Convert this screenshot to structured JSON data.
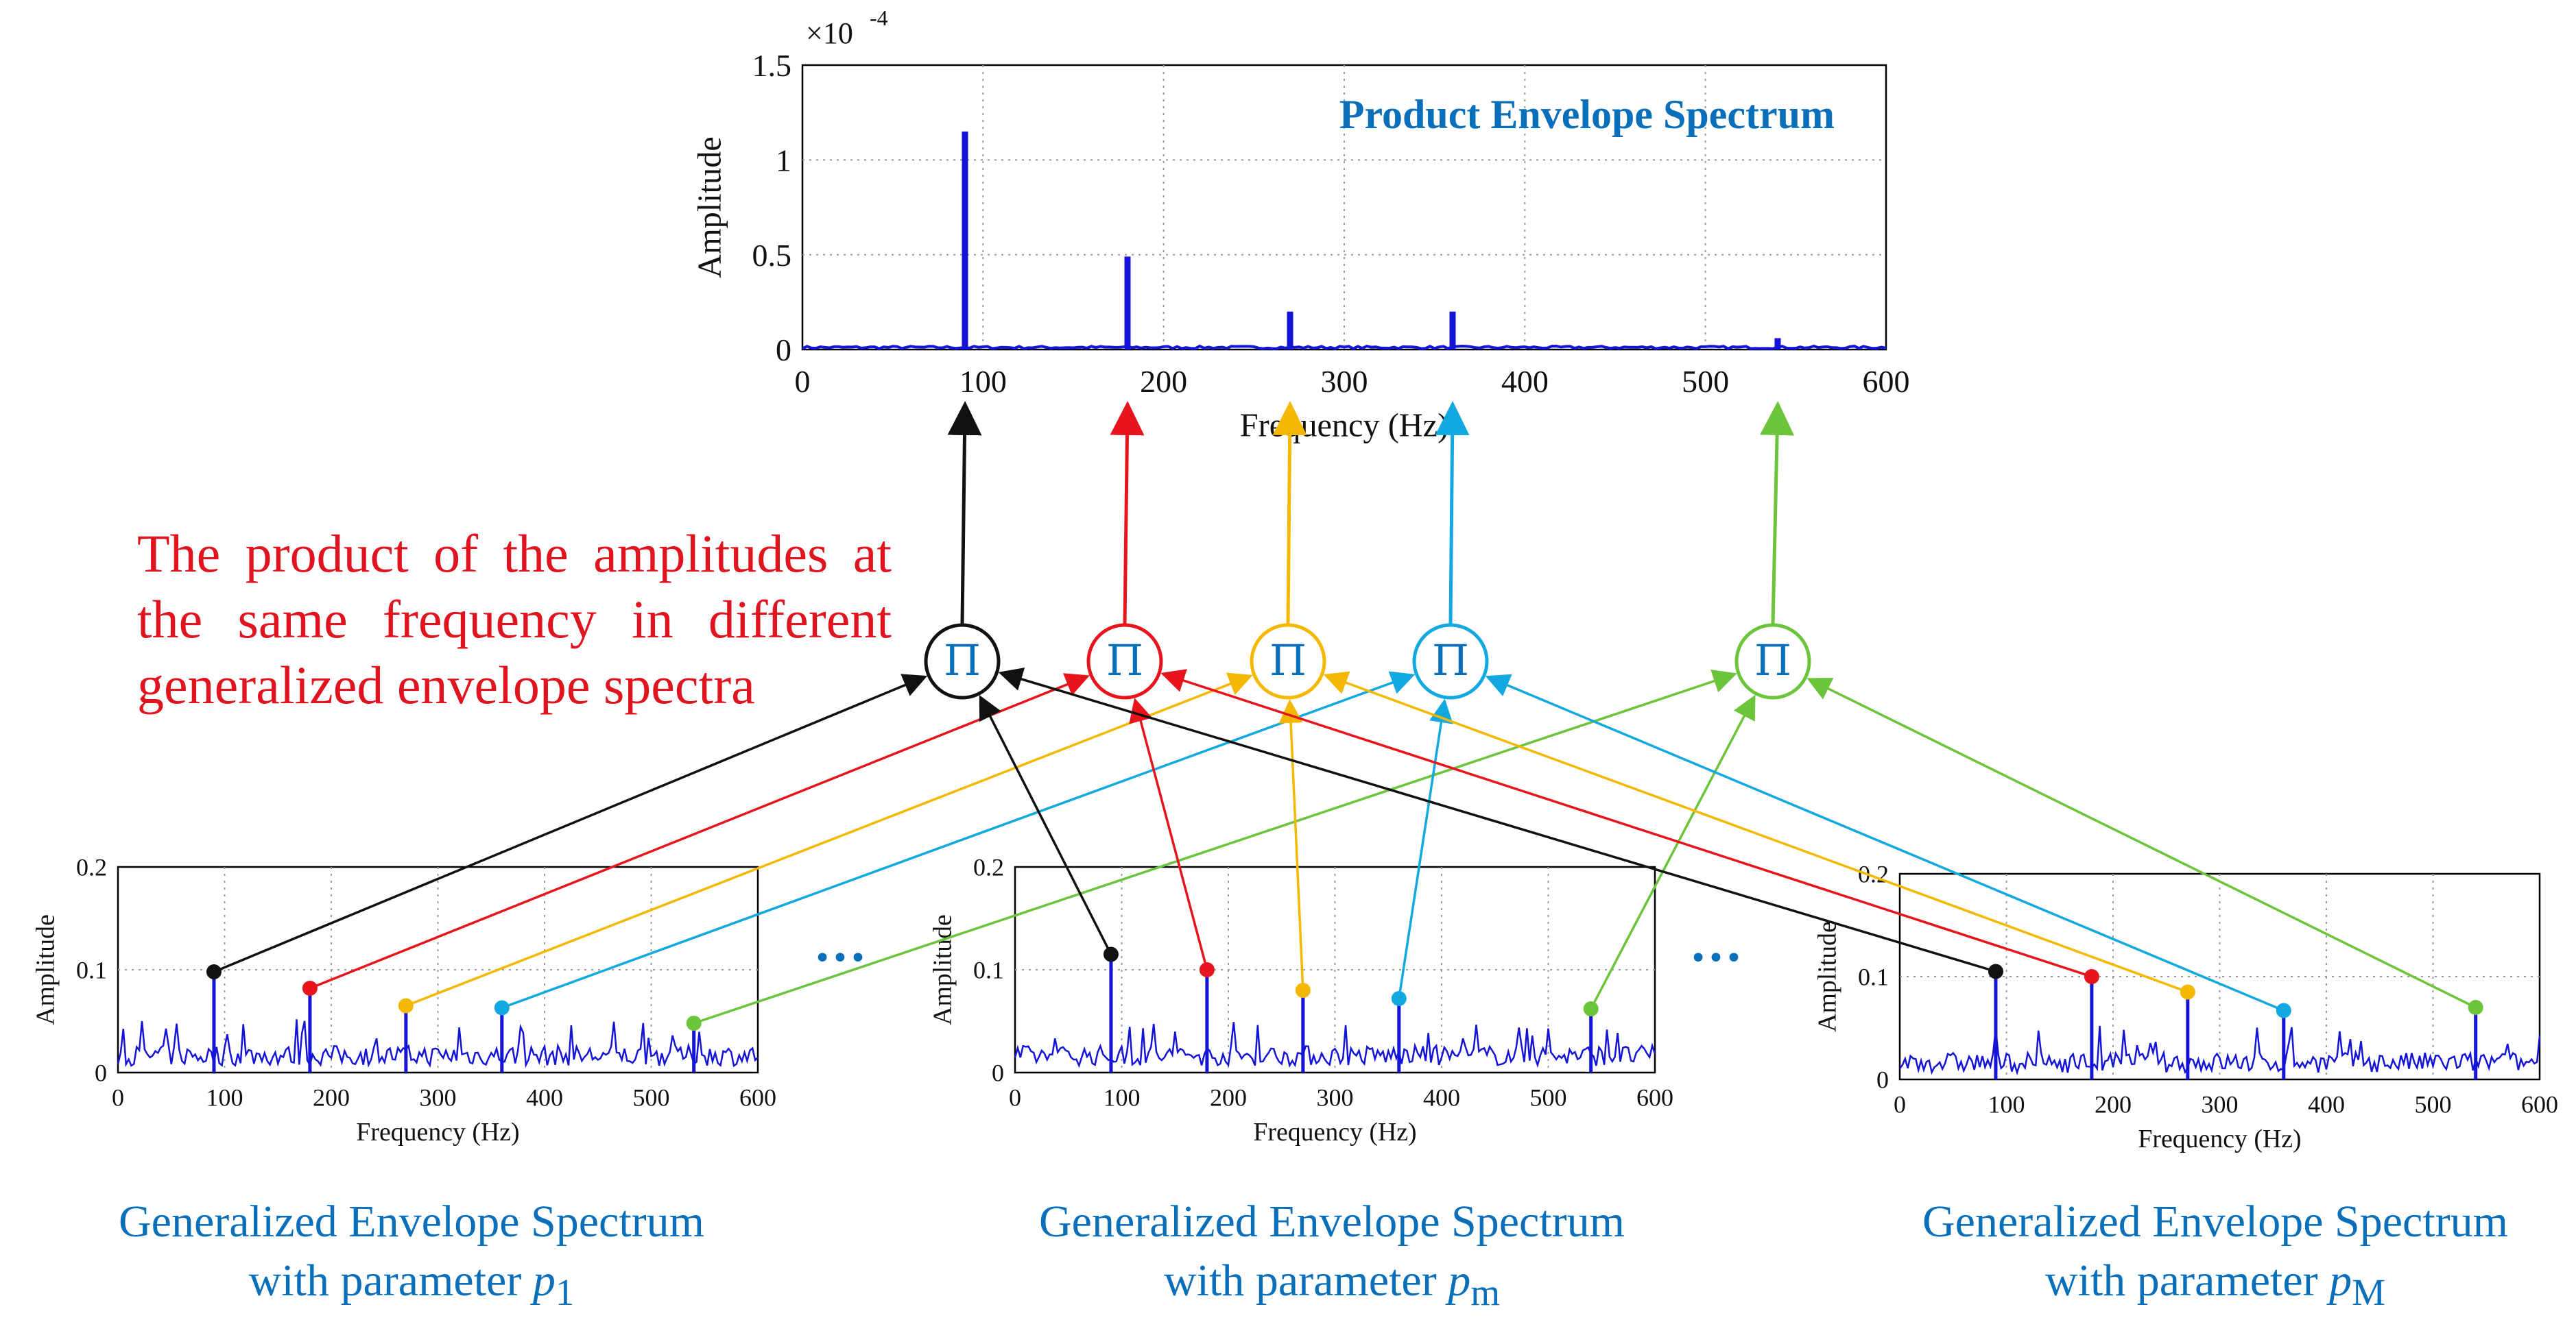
{
  "annotation": "The product of the amplitudes at the same frequency in different generalized envelope spectra",
  "ellipsis": "•••",
  "product_symbol": "Π",
  "colors": {
    "black": "#111111",
    "red": "#e8141c",
    "yellow": "#f5b800",
    "cyan": "#12a8e0",
    "green": "#6cc43a",
    "signal": "#1414d8",
    "title": "#0a6fba"
  },
  "chart_data": [
    {
      "id": "product",
      "type": "line",
      "title": "Product Envelope Spectrum",
      "xlabel": "Frequency (Hz)",
      "ylabel": "Amplitude",
      "y_exponent_label": "×10",
      "y_exponent_power": "-4",
      "xlim": [
        0,
        600
      ],
      "ylim": [
        0,
        1.5
      ],
      "xticks": [
        0,
        100,
        200,
        300,
        400,
        500,
        600
      ],
      "yticks": [
        0,
        0.5,
        1,
        1.5
      ],
      "ytick_labels": [
        "0",
        "0.5",
        "1",
        "1.5"
      ],
      "grid": true,
      "noise_level": 0.015,
      "peaks": [
        {
          "x": 90,
          "y": 1.15
        },
        {
          "x": 180,
          "y": 0.49
        },
        {
          "x": 270,
          "y": 0.2
        },
        {
          "x": 360,
          "y": 0.2
        },
        {
          "x": 540,
          "y": 0.06
        }
      ]
    },
    {
      "id": "p1",
      "type": "line",
      "xlabel": "Frequency (Hz)",
      "ylabel": "Amplitude",
      "xlim": [
        0,
        600
      ],
      "ylim": [
        0,
        0.2
      ],
      "xticks": [
        0,
        100,
        200,
        300,
        400,
        500,
        600
      ],
      "yticks": [
        0,
        0.1,
        0.2
      ],
      "ytick_labels": [
        "0",
        "0.1",
        "0.2"
      ],
      "grid": true,
      "noise_level": 0.022,
      "caption_line1": "Generalized Envelope Spectrum",
      "caption_line2": "with parameter ",
      "param": "p",
      "param_sub": "1",
      "markers": [
        {
          "x": 90,
          "y": 0.098,
          "color": "black"
        },
        {
          "x": 180,
          "y": 0.082,
          "color": "red"
        },
        {
          "x": 270,
          "y": 0.065,
          "color": "yellow"
        },
        {
          "x": 360,
          "y": 0.063,
          "color": "cyan"
        },
        {
          "x": 540,
          "y": 0.048,
          "color": "green"
        }
      ]
    },
    {
      "id": "pm",
      "type": "line",
      "xlabel": "Frequency (Hz)",
      "ylabel": "Amplitude",
      "xlim": [
        0,
        600
      ],
      "ylim": [
        0,
        0.2
      ],
      "xticks": [
        0,
        100,
        200,
        300,
        400,
        500,
        600
      ],
      "yticks": [
        0,
        0.1,
        0.2
      ],
      "ytick_labels": [
        "0",
        "0.1",
        "0.2"
      ],
      "grid": true,
      "noise_level": 0.022,
      "caption_line1": "Generalized Envelope Spectrum",
      "caption_line2": "with parameter ",
      "param": "p",
      "param_sub": "m",
      "markers": [
        {
          "x": 90,
          "y": 0.115,
          "color": "black"
        },
        {
          "x": 180,
          "y": 0.1,
          "color": "red"
        },
        {
          "x": 270,
          "y": 0.08,
          "color": "yellow"
        },
        {
          "x": 360,
          "y": 0.072,
          "color": "cyan"
        },
        {
          "x": 540,
          "y": 0.062,
          "color": "green"
        }
      ]
    },
    {
      "id": "pM",
      "type": "line",
      "xlabel": "Frequency (Hz)",
      "ylabel": "Amplitude",
      "xlim": [
        0,
        600
      ],
      "ylim": [
        0,
        0.2
      ],
      "xticks": [
        0,
        100,
        200,
        300,
        400,
        500,
        600
      ],
      "yticks": [
        0,
        0.1,
        0.2
      ],
      "ytick_labels": [
        "0",
        "0.1",
        "0.2"
      ],
      "grid": true,
      "noise_level": 0.022,
      "caption_line1": "Generalized Envelope Spectrum",
      "caption_line2": "with parameter ",
      "param": "p",
      "param_sub": "M",
      "markers": [
        {
          "x": 90,
          "y": 0.105,
          "color": "black"
        },
        {
          "x": 180,
          "y": 0.1,
          "color": "red"
        },
        {
          "x": 270,
          "y": 0.085,
          "color": "yellow"
        },
        {
          "x": 360,
          "y": 0.067,
          "color": "cyan"
        },
        {
          "x": 540,
          "y": 0.07,
          "color": "green"
        }
      ]
    }
  ]
}
